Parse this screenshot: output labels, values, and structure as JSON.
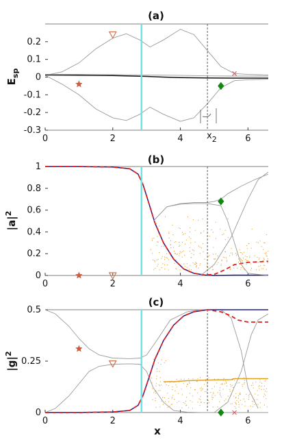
{
  "figure": {
    "xlabel": "x",
    "vertical_markers": {
      "cyan_x": 2.85,
      "dashed_x": 4.8
    }
  },
  "chart_data": [
    {
      "type": "line",
      "title": "(a)",
      "ylabel": "Esp",
      "ylabel_main": "E",
      "ylabel_sub": "sp",
      "xlim": [
        0,
        6.6
      ],
      "ylim": [
        -0.3,
        0.3
      ],
      "xticks": [
        "0",
        "2",
        "4",
        "6"
      ],
      "yticks": [
        "0.2",
        "0.1",
        "0",
        "-0.1",
        "-0.2",
        "-0.3"
      ],
      "xticks_values": [
        0,
        2,
        4,
        6
      ],
      "yticks_values": [
        0.2,
        0.1,
        0,
        -0.1,
        -0.2,
        -0.3
      ],
      "annotation": "x2",
      "annotation_main": "x",
      "annotation_sub": "2",
      "series": [
        {
          "color": "#999999",
          "x": [
            0,
            0.5,
            1,
            1.5,
            2,
            2.4,
            2.8,
            3.1,
            3.5,
            4.0,
            4.4,
            4.8,
            5.2,
            5.6,
            6,
            6.6
          ],
          "y": [
            0.01,
            0.03,
            0.08,
            0.16,
            0.22,
            0.245,
            0.21,
            0.17,
            0.21,
            0.27,
            0.24,
            0.15,
            0.06,
            0.02,
            0.015,
            0.012
          ]
        },
        {
          "color": "#999999",
          "x": [
            0,
            0.5,
            1,
            1.5,
            2,
            2.4,
            2.8,
            3.1,
            3.5,
            4.0,
            4.4,
            4.8,
            5.2,
            5.6,
            6,
            6.6
          ],
          "y": [
            0.01,
            -0.04,
            -0.1,
            -0.18,
            -0.23,
            -0.245,
            -0.21,
            -0.17,
            -0.21,
            -0.25,
            -0.23,
            -0.15,
            -0.06,
            -0.02,
            -0.015,
            -0.012
          ]
        },
        {
          "color": "#111111",
          "x": [
            0,
            1,
            2,
            3,
            3.5,
            4,
            4.8,
            5.5,
            6.6
          ],
          "y": [
            0.012,
            0.011,
            0.009,
            0.004,
            0.0,
            -0.003,
            -0.005,
            -0.006,
            -0.006
          ]
        },
        {
          "color": "#999999",
          "x": [
            0,
            1,
            2,
            3,
            4,
            4.8,
            5.5,
            6.6
          ],
          "y": [
            0.015,
            0.015,
            0.014,
            0.012,
            0.01,
            0.007,
            0.006,
            0.006
          ]
        }
      ],
      "markers": [
        {
          "shape": "triangle-down",
          "color": "#c87850",
          "x": 2.0,
          "y": 0.24
        },
        {
          "shape": "star",
          "color": "#d05a3a",
          "x": 1.0,
          "y": -0.04
        },
        {
          "shape": "diamond",
          "color": "#118811",
          "x": 5.2,
          "y": -0.05
        },
        {
          "shape": "x",
          "color": "#e06060",
          "x": 5.6,
          "y": 0.02
        }
      ]
    },
    {
      "type": "line",
      "title": "(b)",
      "ylabel": "|a|2",
      "ylabel_main": "|a|",
      "ylabel_sub": "2",
      "xlim": [
        0,
        6.6
      ],
      "ylim": [
        0,
        1
      ],
      "xticks": [
        "0",
        "2",
        "4",
        "6"
      ],
      "yticks": [
        "1",
        "0.8",
        "0.6",
        "0.4",
        "0.2",
        "0"
      ],
      "xticks_values": [
        0,
        2,
        4,
        6
      ],
      "yticks_values": [
        1,
        0.8,
        0.6,
        0.4,
        0.2,
        0
      ],
      "series": [
        {
          "color": "#1a1a8a",
          "x": [
            0,
            1,
            2,
            2.5,
            2.75,
            2.9,
            3.05,
            3.25,
            3.5,
            3.8,
            4.1,
            4.4,
            4.7,
            5.0,
            5.3,
            5.6,
            6.0,
            6.6
          ],
          "y": [
            1,
            1,
            0.995,
            0.98,
            0.93,
            0.83,
            0.68,
            0.48,
            0.3,
            0.15,
            0.06,
            0.02,
            0.005,
            0.0,
            0.002,
            0.003,
            0.003,
            0.003
          ]
        },
        {
          "color": "#e02020",
          "dashed": true,
          "x": [
            0,
            1,
            2,
            2.5,
            2.75,
            2.9,
            3.05,
            3.25,
            3.5,
            3.8,
            4.1,
            4.4,
            4.7,
            5.0,
            5.3,
            5.6,
            6.0,
            6.6
          ],
          "y": [
            1,
            1,
            0.995,
            0.98,
            0.93,
            0.83,
            0.68,
            0.48,
            0.3,
            0.15,
            0.06,
            0.02,
            0.005,
            0.01,
            0.05,
            0.1,
            0.12,
            0.13
          ]
        },
        {
          "color": "#999999",
          "x": [
            3.2,
            3.6,
            4.0,
            4.4,
            4.8,
            5.0,
            5.2,
            5.4,
            5.8,
            6.2,
            6.6
          ],
          "y": [
            0.5,
            0.63,
            0.66,
            0.67,
            0.67,
            0.68,
            0.7,
            0.75,
            0.82,
            0.88,
            0.93
          ]
        },
        {
          "color": "#999999",
          "x": [
            3.2,
            3.6,
            4.0,
            4.4,
            4.8,
            5.2,
            5.4,
            5.6,
            5.8,
            6.0,
            6.6
          ],
          "y": [
            0.5,
            0.63,
            0.655,
            0.66,
            0.66,
            0.64,
            0.5,
            0.3,
            0.1,
            0.02,
            0.0
          ]
        },
        {
          "color": "#999999",
          "x": [
            4.6,
            5.0,
            5.5,
            6.0,
            6.3,
            6.6
          ],
          "y": [
            0.0,
            0.1,
            0.35,
            0.7,
            0.88,
            0.95
          ]
        }
      ],
      "markers": [
        {
          "shape": "star",
          "color": "#d05a3a",
          "x": 1.0,
          "y": 0.0
        },
        {
          "shape": "triangle-down",
          "color": "#c87850",
          "x": 2.0,
          "y": 0.0
        },
        {
          "shape": "diamond",
          "color": "#118811",
          "x": 5.2,
          "y": 0.68
        }
      ]
    },
    {
      "type": "line",
      "title": "(c)",
      "ylabel": "|g|2",
      "ylabel_main": "|g|",
      "ylabel_sub": "2",
      "xlim": [
        0,
        6.6
      ],
      "ylim": [
        0,
        0.5
      ],
      "xticks": [
        "0",
        "2",
        "4",
        "6"
      ],
      "yticks": [
        "0.5",
        "0.25",
        "0"
      ],
      "xticks_values": [
        0,
        2,
        4,
        6
      ],
      "yticks_values": [
        0.5,
        0.25,
        0
      ],
      "series": [
        {
          "color": "#999999",
          "x": [
            0,
            0.3,
            0.7,
            1.0,
            1.3,
            1.6,
            2.0,
            2.5,
            2.8,
            3.0,
            3.3,
            3.7,
            4.2,
            4.6,
            4.9,
            5.2,
            5.5,
            5.8,
            6.0,
            6.3
          ],
          "y": [
            0.5,
            0.48,
            0.42,
            0.36,
            0.31,
            0.28,
            0.265,
            0.262,
            0.265,
            0.28,
            0.35,
            0.45,
            0.49,
            0.5,
            0.5,
            0.5,
            0.46,
            0.3,
            0.12,
            0.02
          ]
        },
        {
          "color": "#999999",
          "x": [
            0,
            0.3,
            0.7,
            1.0,
            1.3,
            1.6,
            2.0,
            2.5,
            2.8,
            3.0,
            3.2,
            3.5,
            3.8,
            4.2,
            4.6,
            5.0,
            6.6
          ],
          "y": [
            0.0,
            0.02,
            0.08,
            0.14,
            0.2,
            0.225,
            0.235,
            0.237,
            0.235,
            0.2,
            0.12,
            0.05,
            0.01,
            0.002,
            0.0,
            0.0,
            0.0
          ]
        },
        {
          "color": "#1a1a8a",
          "x": [
            0,
            1,
            2,
            2.5,
            2.75,
            2.9,
            3.05,
            3.25,
            3.5,
            3.8,
            4.1,
            4.4,
            4.8,
            5.2,
            5.6,
            6.0,
            6.6
          ],
          "y": [
            0.0,
            0.0,
            0.003,
            0.01,
            0.035,
            0.085,
            0.16,
            0.26,
            0.35,
            0.425,
            0.47,
            0.49,
            0.5,
            0.5,
            0.5,
            0.5,
            0.5
          ]
        },
        {
          "color": "#e02020",
          "dashed": true,
          "x": [
            0,
            1,
            2,
            2.5,
            2.75,
            2.9,
            3.05,
            3.25,
            3.5,
            3.8,
            4.1,
            4.4,
            4.8,
            5.2,
            5.5,
            5.7,
            6.0,
            6.6
          ],
          "y": [
            0.0,
            0.0,
            0.003,
            0.01,
            0.035,
            0.085,
            0.16,
            0.26,
            0.35,
            0.425,
            0.47,
            0.49,
            0.5,
            0.49,
            0.47,
            0.45,
            0.44,
            0.44
          ]
        },
        {
          "color": "#e0a020",
          "x": [
            3.5,
            3.8,
            4.2,
            4.8,
            5.5,
            5.6,
            6.0,
            6.6
          ],
          "y": [
            0.15,
            0.15,
            0.155,
            0.158,
            0.16,
            0.165,
            0.165,
            0.165
          ]
        },
        {
          "color": "#999999",
          "x": [
            5.0,
            5.4,
            5.8,
            6.1,
            6.3,
            6.6
          ],
          "y": [
            0.0,
            0.05,
            0.2,
            0.38,
            0.45,
            0.48
          ]
        }
      ],
      "markers": [
        {
          "shape": "star",
          "color": "#d05a3a",
          "x": 1.0,
          "y": 0.31
        },
        {
          "shape": "triangle-down",
          "color": "#c87850",
          "x": 2.0,
          "y": 0.238
        },
        {
          "shape": "diamond",
          "color": "#118811",
          "x": 5.2,
          "y": 0.0
        },
        {
          "shape": "x",
          "color": "#e06060",
          "x": 5.6,
          "y": 0.0
        }
      ]
    }
  ]
}
